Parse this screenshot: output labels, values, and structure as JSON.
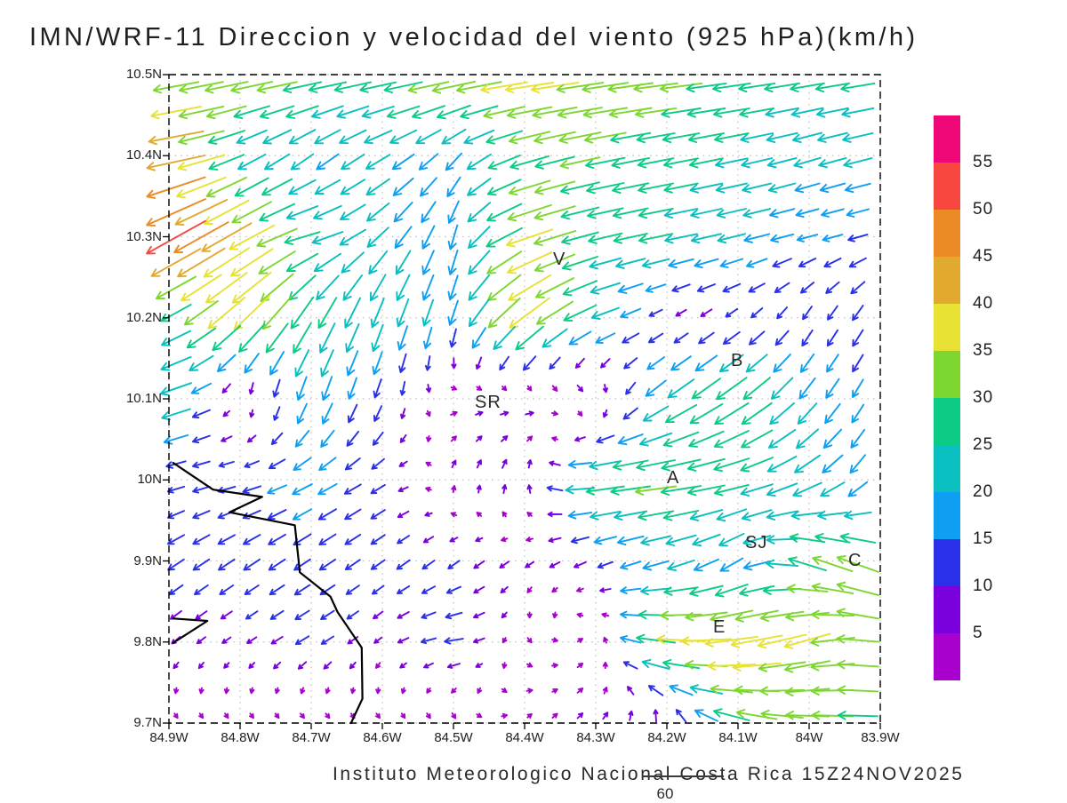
{
  "title": "IMN/WRF-11 Direccion y velocidad del viento (925 hPa)(km/h)",
  "footer": {
    "credit": "Instituto Meteorologico Nacional Costa Rica  15Z24NOV2025",
    "frame_label": "60"
  },
  "chart_data": {
    "type": "vector_field",
    "title": "IMN/WRF-11 Direccion y velocidad del viento (925 hPa)(km/h)",
    "units": "km/h",
    "level": "925 hPa",
    "lon_range_west_deg": [
      84.9,
      83.9
    ],
    "lat_range_deg": [
      9.7,
      10.5
    ],
    "x_tick_labels": [
      "84.9W",
      "84.8W",
      "84.7W",
      "84.6W",
      "84.5W",
      "84.4W",
      "84.3W",
      "84.2W",
      "84.1W",
      "84W",
      "83.9W"
    ],
    "y_tick_labels": [
      "10.5N",
      "10.4N",
      "10.3N",
      "10.2N",
      "10.1N",
      "10N",
      "9.9N",
      "9.8N",
      "9.7N"
    ],
    "grid": "dotted",
    "legend_position": "right-colorbar",
    "colorbar": {
      "units": "km/h",
      "levels": [
        5,
        10,
        15,
        20,
        25,
        30,
        35,
        40,
        45,
        50,
        55
      ],
      "colors_low_to_high": [
        "#a800cd",
        "#7a00de",
        "#2a30e8",
        "#0f9ff2",
        "#0abfbf",
        "#0ccb85",
        "#7ed731",
        "#e7e234",
        "#e2a92f",
        "#ec8a25",
        "#f8473e",
        "#ef0677"
      ]
    },
    "cities": [
      {
        "label": "V",
        "lon_w": 84.35,
        "lat": 10.272
      },
      {
        "label": "SR",
        "lon_w": 84.46,
        "lat": 10.096
      },
      {
        "label": "B",
        "lon_w": 84.1,
        "lat": 10.147
      },
      {
        "label": "A",
        "lon_w": 84.19,
        "lat": 10.003
      },
      {
        "label": "SJ",
        "lon_w": 84.08,
        "lat": 9.923
      },
      {
        "label": "C",
        "lon_w": 83.935,
        "lat": 9.901
      },
      {
        "label": "E",
        "lon_w": 84.125,
        "lat": 9.818
      }
    ],
    "coastline_lonlat_w": [
      [
        [
          84.894,
          10.021
        ],
        [
          84.838,
          9.988
        ],
        [
          84.769,
          9.979
        ],
        [
          84.815,
          9.96
        ],
        [
          84.723,
          9.944
        ],
        [
          84.716,
          9.886
        ],
        [
          84.673,
          9.856
        ],
        [
          84.663,
          9.837
        ],
        [
          84.629,
          9.793
        ],
        [
          84.628,
          9.73
        ],
        [
          84.644,
          9.7
        ]
      ],
      [
        [
          84.894,
          9.829
        ],
        [
          84.846,
          9.826
        ],
        [
          84.894,
          9.799
        ]
      ]
    ],
    "wind_grid": {
      "comment": "u eastward km/h, v northward km/h, rows = lats top to bottom",
      "lats": [
        10.5,
        10.4,
        10.3,
        10.2,
        10.1,
        10.0,
        9.9,
        9.8,
        9.7
      ],
      "lons_w": [
        84.9,
        84.8,
        84.7,
        84.6,
        84.5,
        84.4,
        84.3,
        84.2,
        84.1,
        84.0,
        83.9
      ],
      "u": [
        [
          -32,
          -33,
          -30,
          -28,
          -35,
          -37,
          -35,
          -33,
          -28,
          -26,
          -25
        ],
        [
          -46,
          -20,
          -15,
          -18,
          -12,
          -28,
          -30,
          -26,
          -24,
          -20,
          -22
        ],
        [
          -45,
          -35,
          -25,
          -15,
          -5,
          -35,
          -25,
          -25,
          -20,
          -15,
          -14
        ],
        [
          -20,
          -28,
          -14,
          -8,
          -6,
          -30,
          -22,
          -6,
          -8,
          -6,
          -8
        ],
        [
          -26,
          3,
          -6,
          -4,
          5,
          7,
          8,
          -20,
          -25,
          -12,
          -6
        ],
        [
          -12,
          -13,
          -15,
          -10,
          2,
          2,
          -30,
          -32,
          -26,
          -20,
          -8
        ],
        [
          -12,
          -12,
          -12,
          -10,
          -8,
          -6,
          -10,
          -20,
          -15,
          -28,
          -32
        ],
        [
          -6,
          -6,
          -10,
          -5,
          -14,
          3,
          4,
          -35,
          -40,
          -34,
          -30
        ],
        [
          3,
          3,
          4,
          3,
          4,
          3,
          4,
          2,
          -28,
          -32,
          -28
        ]
      ],
      "v": [
        [
          -6,
          -6,
          -5,
          -5,
          -6,
          -5,
          -5,
          -4,
          -4,
          -4,
          -4
        ],
        [
          -8,
          -10,
          -12,
          -10,
          -12,
          -8,
          -6,
          -5,
          -5,
          -6,
          -5
        ],
        [
          -25,
          -20,
          -6,
          -15,
          -18,
          -12,
          -6,
          -5,
          -5,
          -4,
          -4
        ],
        [
          -10,
          -26,
          -24,
          -22,
          -18,
          -24,
          -8,
          -4,
          -6,
          -10,
          -12
        ],
        [
          -8,
          -3,
          -18,
          -12,
          1,
          0,
          -4,
          -14,
          -18,
          -16,
          -12
        ],
        [
          -3,
          -3,
          -8,
          -6,
          6,
          8,
          -4,
          -4,
          -6,
          -12,
          -14
        ],
        [
          -8,
          -8,
          -8,
          -7,
          -6,
          -4,
          -4,
          -6,
          -10,
          10,
          12
        ],
        [
          -5,
          -4,
          -6,
          -4,
          -2,
          -4,
          4,
          4,
          -6,
          -10,
          8
        ],
        [
          -3,
          -3,
          -3,
          -3,
          -4,
          3,
          4,
          10,
          8,
          2,
          0
        ]
      ]
    }
  }
}
